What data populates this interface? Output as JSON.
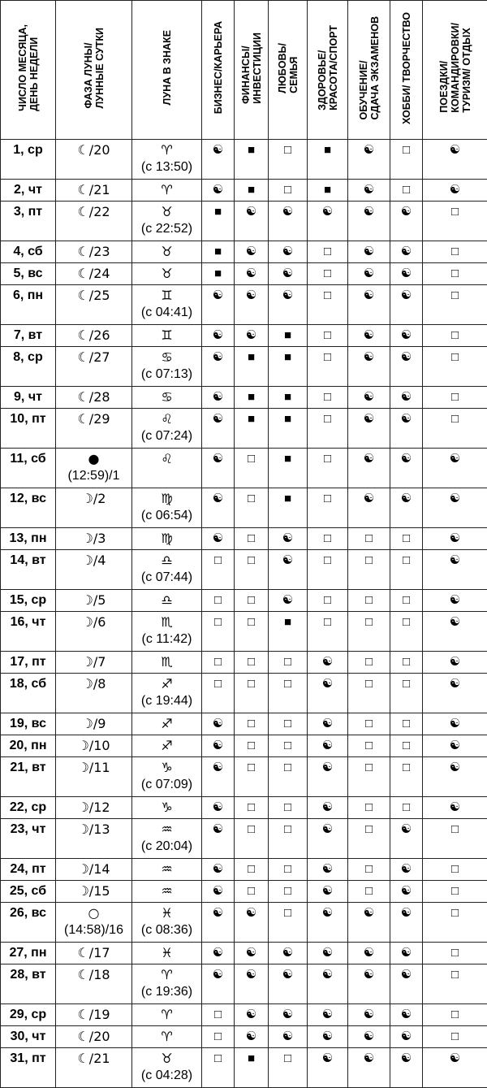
{
  "headers": [
    "ЧИСЛО МЕСЯЦА,\nДЕНЬ НЕДЕЛИ",
    "ФАЗА ЛУНЫ/\nЛУННЫЕ СУТКИ",
    "ЛУНА В ЗНАКЕ",
    "БИЗНЕС/КАРЬЕРА",
    "ФИНАНСЫ/\nИНВЕСТИЦИИ",
    "ЛЮБОВЬ/\nСЕМЬЯ",
    "ЗДОРОВЬЕ/\nКРАСОТА/СПОРТ",
    "ОБУЧЕНИЕ/\nСДАЧА ЭКЗАМЕНОВ",
    "ХОББИ/ ТВОРЧЕСТВО",
    "ПОЕЗДКИ/\nКОМАНДИРОВКИ/\nТУРИЗМ/ ОТДЫХ"
  ],
  "legend_icons": {
    "☯": "yin-yang-icon",
    "■": "filled-square-icon",
    "□": "empty-square-icon"
  },
  "rows": [
    {
      "day": "1, ср",
      "phase": "☾/20",
      "sign": "♈",
      "time": "(с 13:50)",
      "marks": [
        "☯",
        "■",
        "□",
        "■",
        "☯",
        "□",
        "☯"
      ]
    },
    {
      "day": "2, чт",
      "phase": "☾/21",
      "sign": "♈",
      "time": "",
      "marks": [
        "☯",
        "■",
        "□",
        "■",
        "☯",
        "□",
        "☯"
      ]
    },
    {
      "day": "3, пт",
      "phase": "☾/22",
      "sign": "♉",
      "time": "(с 22:52)",
      "marks": [
        "■",
        "☯",
        "☯",
        "☯",
        "☯",
        "☯",
        "□"
      ]
    },
    {
      "day": "4, сб",
      "phase": "☾/23",
      "sign": "♉",
      "time": "",
      "marks": [
        "■",
        "☯",
        "☯",
        "□",
        "☯",
        "☯",
        "□"
      ]
    },
    {
      "day": "5, вс",
      "phase": "☾/24",
      "sign": "♉",
      "time": "",
      "marks": [
        "■",
        "☯",
        "☯",
        "□",
        "☯",
        "☯",
        "□"
      ]
    },
    {
      "day": "6, пн",
      "phase": "☾/25",
      "sign": "♊",
      "time": "(с 04:41)",
      "marks": [
        "☯",
        "☯",
        "☯",
        "□",
        "☯",
        "☯",
        "□"
      ]
    },
    {
      "day": "7, вт",
      "phase": "☾/26",
      "sign": "♊",
      "time": "",
      "marks": [
        "☯",
        "☯",
        "■",
        "□",
        "☯",
        "☯",
        "□"
      ]
    },
    {
      "day": "8, ср",
      "phase": "☾/27",
      "sign": "♋",
      "time": "(с 07:13)",
      "marks": [
        "☯",
        "■",
        "■",
        "□",
        "☯",
        "☯",
        "□"
      ]
    },
    {
      "day": "9, чт",
      "phase": "☾/28",
      "sign": "♋",
      "time": "",
      "marks": [
        "☯",
        "■",
        "■",
        "□",
        "☯",
        "☯",
        "□"
      ]
    },
    {
      "day": "10, пт",
      "phase": "☾/29",
      "sign": "♌",
      "time": "(с 07:24)",
      "marks": [
        "☯",
        "■",
        "■",
        "□",
        "☯",
        "☯",
        "□"
      ]
    },
    {
      "day": "11, сб",
      "phase": "●",
      "phase2": "(12:59)/1",
      "sign": "♌",
      "time": "",
      "marks": [
        "☯",
        "□",
        "■",
        "□",
        "☯",
        "☯",
        "☯"
      ]
    },
    {
      "day": "12, вс",
      "phase": "☽/2",
      "sign": "♍",
      "time": "(с 06:54)",
      "marks": [
        "☯",
        "□",
        "■",
        "□",
        "☯",
        "☯",
        "☯"
      ]
    },
    {
      "day": "13, пн",
      "phase": "☽/3",
      "sign": "♍",
      "time": "",
      "marks": [
        "☯",
        "□",
        "☯",
        "□",
        "□",
        "□",
        "☯"
      ]
    },
    {
      "day": "14, вт",
      "phase": "☽/4",
      "sign": "♎",
      "time": "(с 07:44)",
      "marks": [
        "□",
        "□",
        "☯",
        "□",
        "□",
        "□",
        "☯"
      ]
    },
    {
      "day": "15, ср",
      "phase": "☽/5",
      "sign": "♎",
      "time": "",
      "marks": [
        "□",
        "□",
        "☯",
        "□",
        "□",
        "□",
        "☯"
      ]
    },
    {
      "day": "16, чт",
      "phase": "☽/6",
      "sign": "♏",
      "time": "(с 11:42)",
      "marks": [
        "□",
        "□",
        "■",
        "□",
        "□",
        "□",
        "☯"
      ]
    },
    {
      "day": "17, пт",
      "phase": "☽/7",
      "sign": "♏",
      "time": "",
      "marks": [
        "□",
        "□",
        "□",
        "☯",
        "□",
        "□",
        "☯"
      ]
    },
    {
      "day": "18, сб",
      "phase": "☽/8",
      "sign": "♐",
      "time": "(с 19:44)",
      "marks": [
        "□",
        "□",
        "□",
        "☯",
        "□",
        "□",
        "☯"
      ]
    },
    {
      "day": "19, вс",
      "phase": "☽/9",
      "sign": "♐",
      "time": "",
      "marks": [
        "☯",
        "□",
        "□",
        "☯",
        "□",
        "□",
        "☯"
      ]
    },
    {
      "day": "20, пн",
      "phase": "☽/10",
      "sign": "♐",
      "time": "",
      "marks": [
        "☯",
        "□",
        "□",
        "☯",
        "□",
        "□",
        "☯"
      ]
    },
    {
      "day": "21, вт",
      "phase": "☽/11",
      "sign": "♑",
      "time": "(с 07:09)",
      "marks": [
        "☯",
        "□",
        "□",
        "☯",
        "□",
        "□",
        "☯"
      ]
    },
    {
      "day": "22, ср",
      "phase": "☽/12",
      "sign": "♑",
      "time": "",
      "marks": [
        "☯",
        "□",
        "□",
        "☯",
        "□",
        "□",
        "☯"
      ]
    },
    {
      "day": "23, чт",
      "phase": "☽/13",
      "sign": "♒",
      "time": "(с 20:04)",
      "marks": [
        "☯",
        "□",
        "□",
        "☯",
        "□",
        "☯",
        "□"
      ]
    },
    {
      "day": "24, пт",
      "phase": "☽/14",
      "sign": "♒",
      "time": "",
      "marks": [
        "☯",
        "□",
        "□",
        "☯",
        "□",
        "☯",
        "□"
      ]
    },
    {
      "day": "25, сб",
      "phase": "☽/15",
      "sign": "♒",
      "time": "",
      "marks": [
        "☯",
        "□",
        "□",
        "☯",
        "□",
        "☯",
        "□"
      ]
    },
    {
      "day": "26, вс",
      "phase": "○",
      "phase2": "(14:58)/16",
      "sign": "♓",
      "time": "(с 08:36)",
      "marks": [
        "☯",
        "☯",
        "□",
        "☯",
        "☯",
        "☯",
        "□"
      ]
    },
    {
      "day": "27, пн",
      "phase": "☾/17",
      "sign": "♓",
      "time": "",
      "marks": [
        "☯",
        "☯",
        "☯",
        "☯",
        "☯",
        "☯",
        "□"
      ]
    },
    {
      "day": "28, вт",
      "phase": "☾/18",
      "sign": "♈",
      "time": "(с 19:36)",
      "marks": [
        "☯",
        "☯",
        "☯",
        "☯",
        "☯",
        "☯",
        "□"
      ]
    },
    {
      "day": "29, ср",
      "phase": "☾/19",
      "sign": "♈",
      "time": "",
      "marks": [
        "□",
        "☯",
        "☯",
        "☯",
        "☯",
        "☯",
        "□"
      ]
    },
    {
      "day": "30, чт",
      "phase": "☾/20",
      "sign": "♈",
      "time": "",
      "marks": [
        "□",
        "☯",
        "☯",
        "☯",
        "☯",
        "☯",
        "□"
      ]
    },
    {
      "day": "31, пт",
      "phase": "☾/21",
      "sign": "♉",
      "time": "(с 04:28)",
      "marks": [
        "□",
        "■",
        "□",
        "☯",
        "☯",
        "☯",
        "☯"
      ]
    }
  ]
}
